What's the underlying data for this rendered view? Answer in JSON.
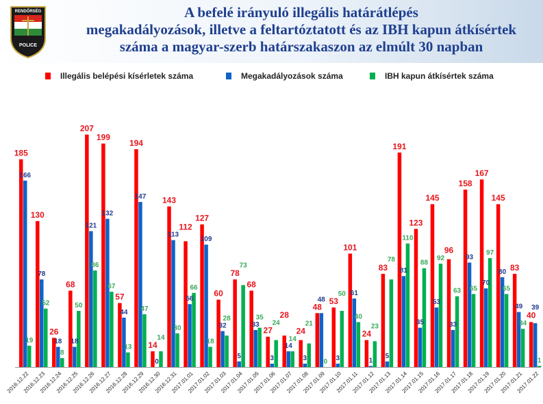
{
  "header": {
    "title_lines": [
      "A befelé irányuló illegális határátlépés",
      "megakadályozások, illetve a feltartóztatott és az IBH kapun átkísértek",
      "száma a magyar-szerb határszakaszon az elmúlt 30 napban"
    ],
    "logo_text": [
      "RENDŐRSÉG",
      "POLICE"
    ]
  },
  "chart_data": {
    "type": "bar",
    "title": "A befelé irányuló illegális határátlépés megakadályozások, illetve a feltartóztatott és az IBH kapun átkísértek száma a magyar-szerb határszakaszon az elmúlt 30 napban",
    "legend_position": "top",
    "ylim": [
      0,
      215
    ],
    "grid": false,
    "categories": [
      "2016.12.22",
      "2016.12.23",
      "2016.12.24",
      "2016.12.25",
      "2016.12.26",
      "2016.12.27",
      "2016.12.28",
      "2016.12.29",
      "2016.12.30",
      "2016.12.31",
      "2017.01.01",
      "2017.01.02",
      "2017.01.03",
      "2017.01.04",
      "2017.01.05",
      "2017.01.06",
      "2017.01.07",
      "2017.01.08",
      "2017.01.09",
      "2017.01.10",
      "2017.01.11",
      "2017.01.12",
      "2017.01.13",
      "2017.01.14",
      "2017.01.15",
      "2017.01.16",
      "2017.01.17",
      "2017.01.18",
      "2017.01.19",
      "2017.01.20",
      "2017.01.21",
      "2017.01.22"
    ],
    "series": [
      {
        "name": "Illegális belépési kísérletek száma",
        "color": "#ff0000",
        "label_color": "#e8141c",
        "values": [
          185,
          130,
          26,
          68,
          207,
          199,
          57,
          194,
          14,
          143,
          112,
          127,
          60,
          78,
          68,
          27,
          28,
          24,
          48,
          53,
          101,
          24,
          83,
          191,
          123,
          145,
          96,
          158,
          167,
          145,
          83,
          40
        ]
      },
      {
        "name": "Megakadályozások száma",
        "color": "#0f63c9",
        "label_color": "#1f3a8f",
        "values": [
          166,
          78,
          18,
          18,
          121,
          132,
          44,
          147,
          0,
          113,
          56,
          109,
          32,
          5,
          33,
          3,
          14,
          3,
          48,
          3,
          61,
          1,
          5,
          81,
          35,
          53,
          33,
          93,
          70,
          80,
          49,
          39
        ]
      },
      {
        "name": "IBH kapun átkísértek száma",
        "color": "#00b050",
        "label_color": "#3aa85a",
        "values": [
          19,
          52,
          8,
          50,
          86,
          67,
          13,
          47,
          14,
          30,
          66,
          18,
          28,
          73,
          35,
          24,
          14,
          21,
          0,
          50,
          40,
          23,
          78,
          110,
          88,
          92,
          63,
          65,
          97,
          65,
          34,
          1
        ]
      }
    ]
  }
}
